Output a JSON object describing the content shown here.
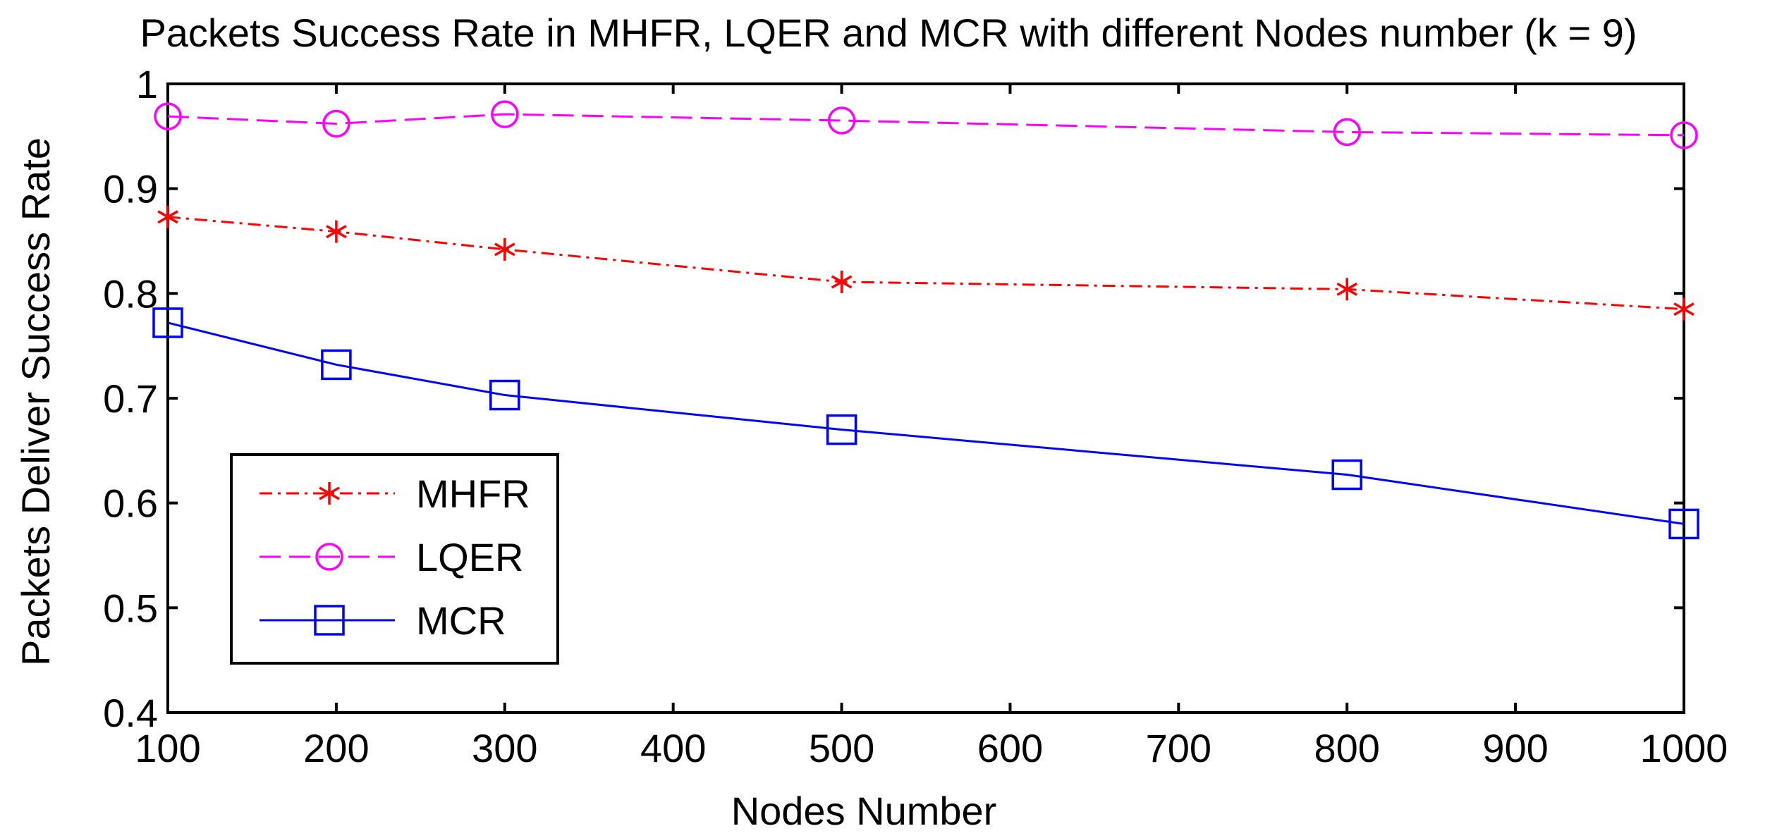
{
  "chart_data": {
    "type": "line",
    "title": "Packets Success Rate in MHFR, LQER and MCR with different Nodes number (k = 9)",
    "xlabel": "Nodes Number",
    "ylabel": "Packets Deliver Success Rate",
    "xlim": [
      100,
      1000
    ],
    "ylim": [
      0.4,
      1
    ],
    "xticks": [
      "100",
      "200",
      "300",
      "400",
      "500",
      "600",
      "700",
      "800",
      "900",
      "1000"
    ],
    "yticks": [
      "0.4",
      "0.5",
      "0.6",
      "0.7",
      "0.8",
      "0.9",
      "1"
    ],
    "x": [
      100,
      200,
      300,
      500,
      800,
      1000
    ],
    "grid": false,
    "legend_position": "bottom-left",
    "series": [
      {
        "name": "MHFR",
        "values": [
          0.873,
          0.859,
          0.842,
          0.811,
          0.804,
          0.785
        ],
        "color": "#ff0000",
        "marker": "asterisk",
        "line_style": "dash-dot"
      },
      {
        "name": "LQER",
        "values": [
          0.969,
          0.962,
          0.971,
          0.965,
          0.954,
          0.951
        ],
        "color": "#ff00ff",
        "marker": "circle",
        "line_style": "dashed"
      },
      {
        "name": "MCR",
        "values": [
          0.772,
          0.732,
          0.703,
          0.67,
          0.627,
          0.58
        ],
        "color": "#0000ff",
        "marker": "square",
        "line_style": "solid"
      }
    ]
  }
}
